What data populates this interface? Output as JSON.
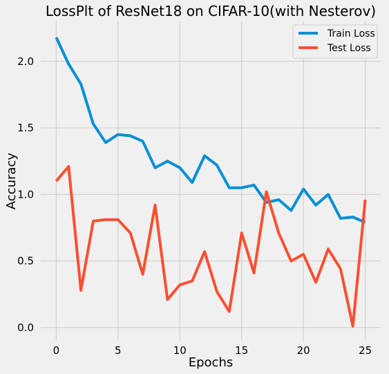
{
  "chart_data": {
    "type": "line",
    "title": "LossPlt of ResNet18 on CIFAR-10(with Nesterov)",
    "xlabel": "Epochs",
    "ylabel": "Accuracy",
    "xlim": [
      -1.25,
      26.25
    ],
    "ylim": [
      -0.1,
      2.3
    ],
    "xticks": [
      0,
      5,
      10,
      15,
      20,
      25
    ],
    "yticks": [
      0.0,
      0.5,
      1.0,
      1.5,
      2.0
    ],
    "xtick_labels": [
      "0",
      "5",
      "10",
      "15",
      "20",
      "25"
    ],
    "ytick_labels": [
      "0.0",
      "0.5",
      "1.0",
      "1.5",
      "2.0"
    ],
    "grid": true,
    "legend_position": "top-right",
    "x": [
      0,
      1,
      2,
      3,
      4,
      5,
      6,
      7,
      8,
      9,
      10,
      11,
      12,
      13,
      14,
      15,
      16,
      17,
      18,
      19,
      20,
      21,
      22,
      23,
      24,
      25
    ],
    "series": [
      {
        "name": "Train Loss",
        "color": "#008fd5",
        "values": [
          2.18,
          1.98,
          1.83,
          1.53,
          1.39,
          1.45,
          1.44,
          1.4,
          1.2,
          1.25,
          1.2,
          1.09,
          1.29,
          1.22,
          1.05,
          1.05,
          1.07,
          0.94,
          0.96,
          0.88,
          1.04,
          0.92,
          1.0,
          0.82,
          0.83,
          0.79
        ]
      },
      {
        "name": "Test Loss",
        "color": "#fc4f30",
        "values": [
          1.1,
          1.21,
          0.28,
          0.8,
          0.81,
          0.81,
          0.71,
          0.4,
          0.92,
          0.21,
          0.32,
          0.35,
          0.57,
          0.27,
          0.12,
          0.71,
          0.41,
          1.02,
          0.71,
          0.5,
          0.55,
          0.34,
          0.59,
          0.44,
          0.01,
          0.96
        ]
      }
    ]
  }
}
